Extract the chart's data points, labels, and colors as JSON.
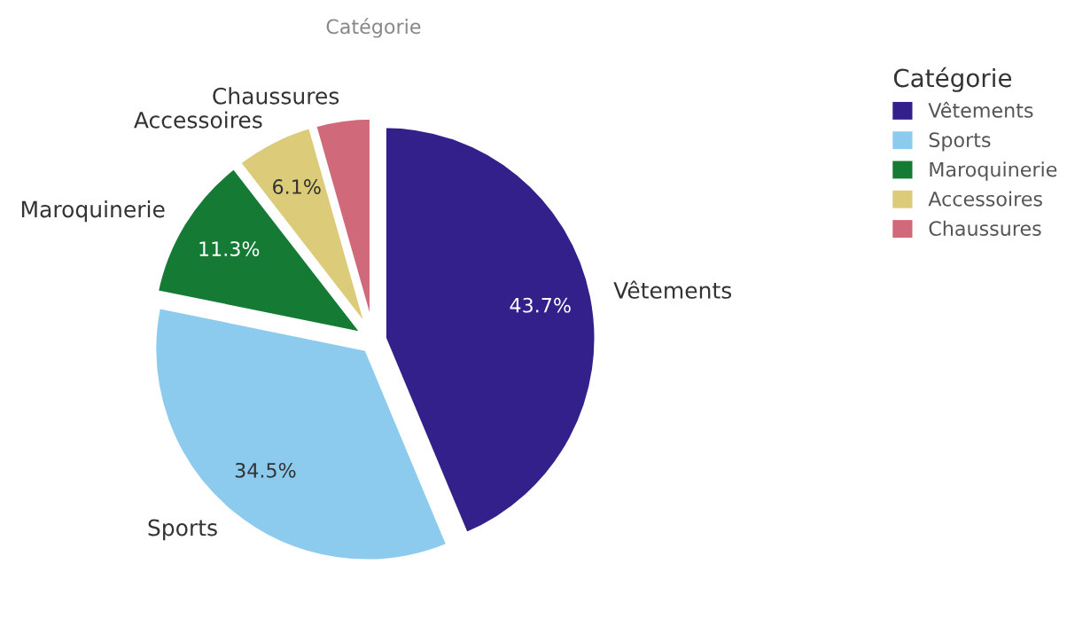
{
  "chart_data": {
    "type": "pie",
    "title": "Catégorie",
    "legend_title": "Catégorie",
    "legend": "right",
    "categories": [
      "Vêtements",
      "Sports",
      "Maroquinerie",
      "Accessoires",
      "Chaussures"
    ],
    "values": [
      43.7,
      34.5,
      11.3,
      6.1,
      4.4
    ],
    "value_labels": [
      "43.7%",
      "34.5%",
      "11.3%",
      "6.1%",
      null
    ],
    "colors": [
      "#33208a",
      "#8ccbee",
      "#157a34",
      "#dccb78",
      "#d06a7a"
    ]
  }
}
